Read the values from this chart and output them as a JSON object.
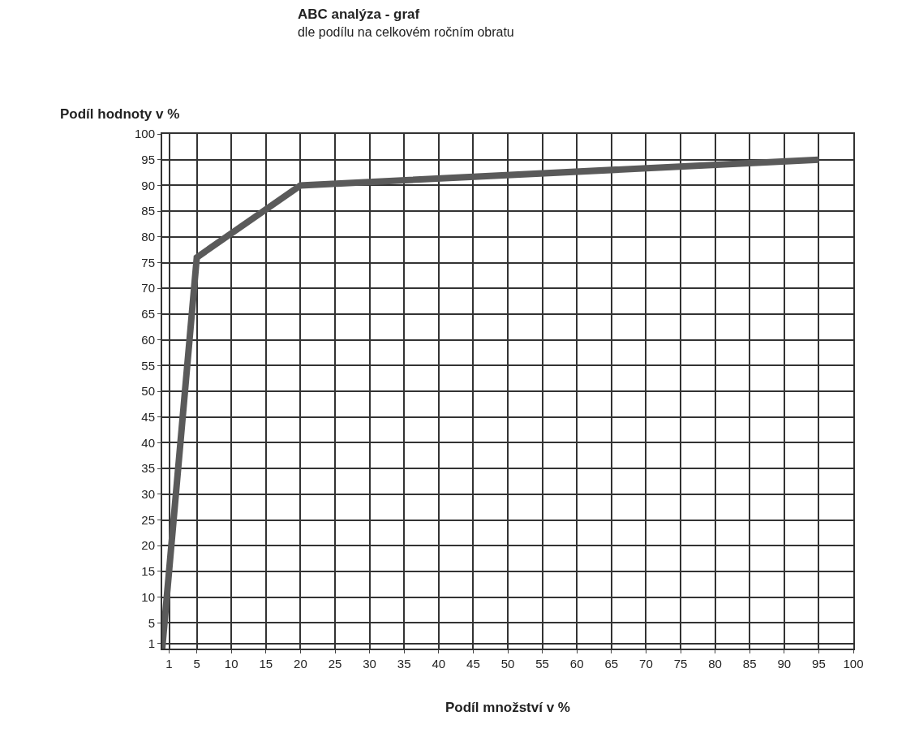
{
  "chart_data": {
    "type": "line",
    "title": "ABC analýza - graf",
    "subtitle": "dle podílu na celkovém ročním obratu",
    "xlabel": "Podíl množství v %",
    "ylabel": "Podíl hodnoty v %",
    "x": [
      0,
      5,
      20,
      95
    ],
    "series": [
      {
        "color": "#5a5a5a",
        "values": [
          0,
          76,
          90,
          95
        ]
      }
    ],
    "xlim": [
      0,
      100
    ],
    "ylim": [
      0,
      100
    ],
    "xticks": [
      1,
      5,
      10,
      15,
      20,
      25,
      30,
      35,
      40,
      45,
      50,
      55,
      60,
      65,
      70,
      75,
      80,
      85,
      90,
      95,
      100
    ],
    "yticks": [
      1,
      5,
      10,
      15,
      20,
      25,
      30,
      35,
      40,
      45,
      50,
      55,
      60,
      65,
      70,
      75,
      80,
      85,
      90,
      95,
      100
    ],
    "grid": true,
    "marker": "none",
    "line_style": "solid"
  }
}
